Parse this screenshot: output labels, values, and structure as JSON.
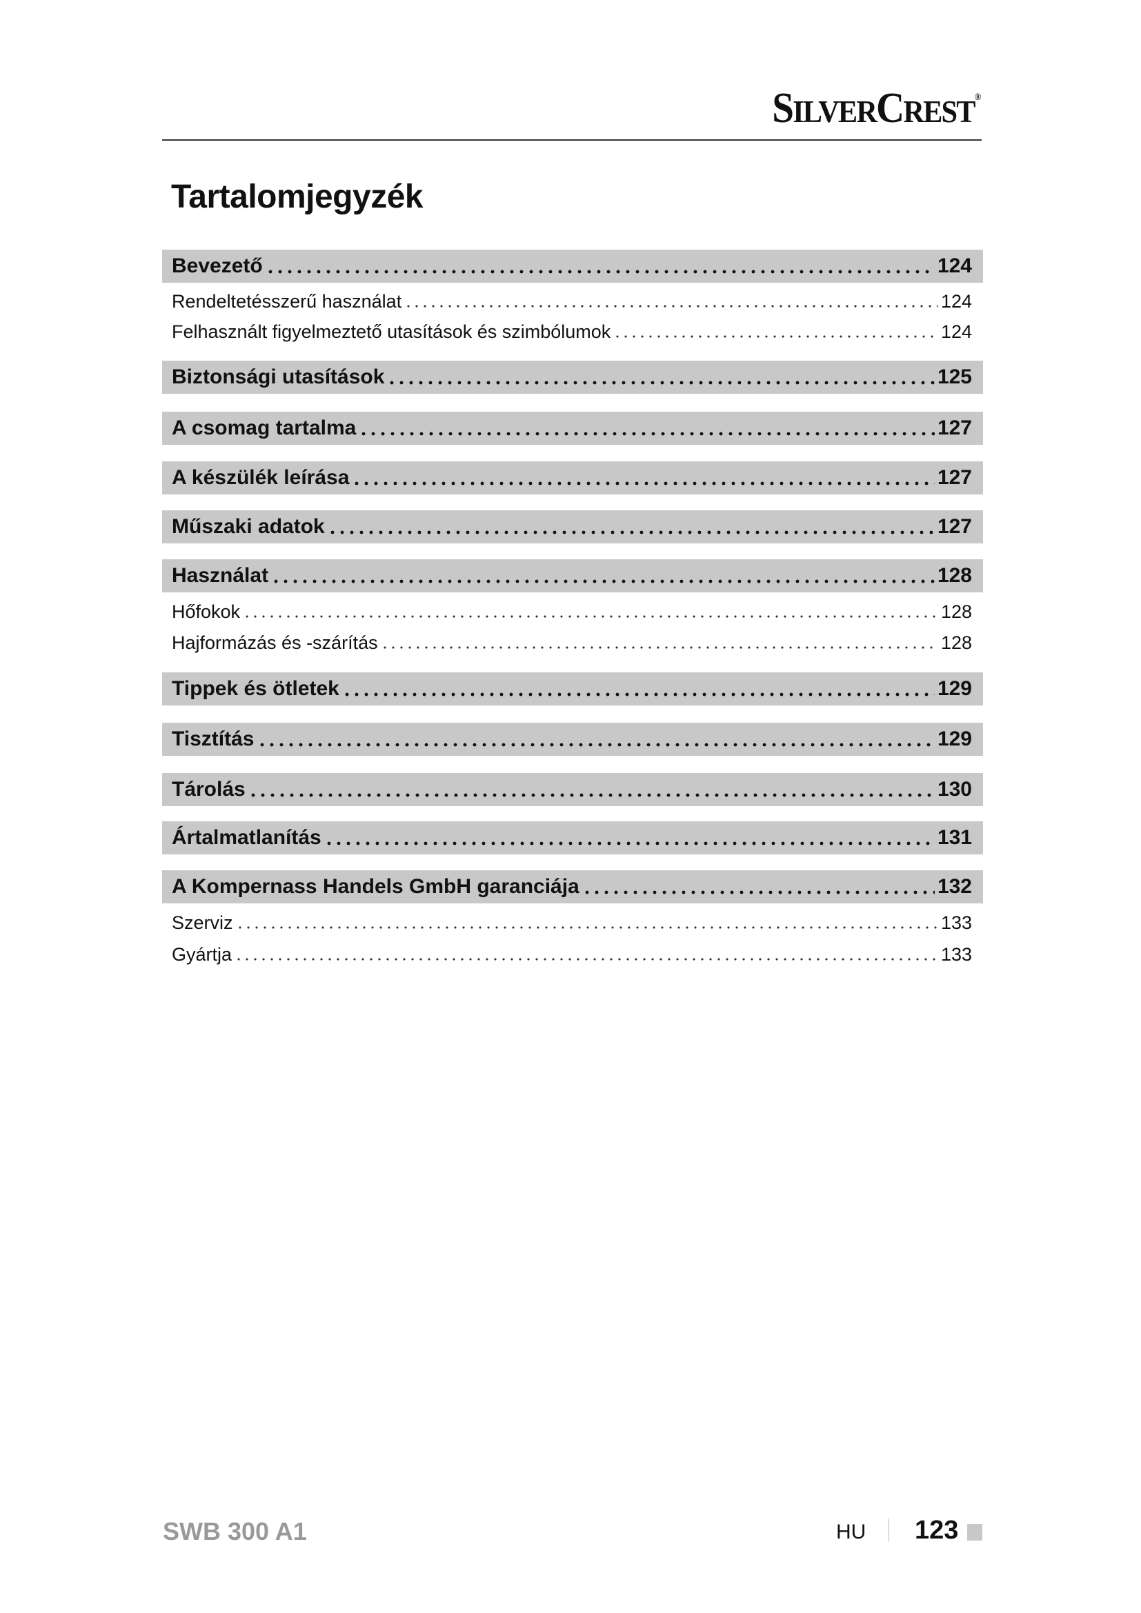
{
  "header": {
    "brand": "SilverCrest",
    "brand_parts": [
      "S",
      "ILVER",
      "C",
      "REST"
    ],
    "registered": "®"
  },
  "title": "Tartalomjegyzék",
  "toc": [
    {
      "type": "main",
      "label": "Bevezető",
      "page": "124"
    },
    {
      "type": "sub",
      "label": "Rendeltetésszerű használat",
      "page": "124"
    },
    {
      "type": "sub",
      "label": "Felhasznált figyelmeztető utasítások és szimbólumok",
      "page": "124"
    },
    {
      "type": "main",
      "label": "Biztonsági utasítások",
      "page": "125"
    },
    {
      "type": "main",
      "label": "A csomag tartalma",
      "page": "127"
    },
    {
      "type": "main",
      "label": "A készülék leírása",
      "page": "127"
    },
    {
      "type": "main",
      "label": "Műszaki adatok",
      "page": "127"
    },
    {
      "type": "main",
      "label": "Használat",
      "page": "128"
    },
    {
      "type": "sub",
      "label": "Hőfokok",
      "page": "128"
    },
    {
      "type": "sub",
      "label": "Hajformázás és -szárítás",
      "page": "128"
    },
    {
      "type": "main",
      "label": "Tippek és ötletek",
      "page": "129"
    },
    {
      "type": "main",
      "label": "Tisztítás",
      "page": "129"
    },
    {
      "type": "main",
      "label": "Tárolás",
      "page": "130"
    },
    {
      "type": "main",
      "label": "Ártalmatlanítás",
      "page": "131"
    },
    {
      "type": "main",
      "label": "A Kompernass Handels GmbH garanciája",
      "page": "132"
    },
    {
      "type": "sub",
      "label": "Szerviz",
      "page": "133"
    },
    {
      "type": "sub",
      "label": "Gyártja",
      "page": "133"
    }
  ],
  "footer": {
    "model": "SWB 300 A1",
    "language": "HU",
    "page_number": "123"
  }
}
